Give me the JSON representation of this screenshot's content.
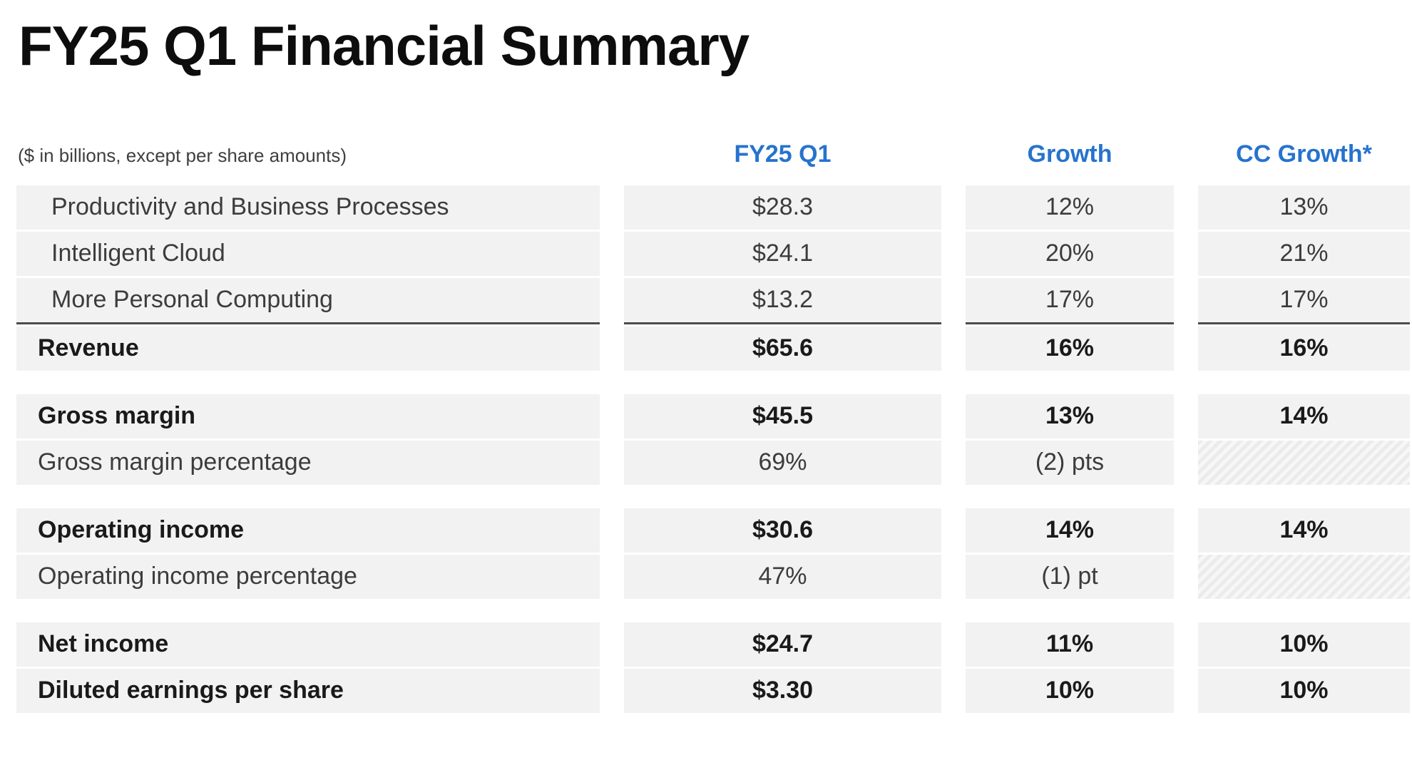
{
  "page": {
    "title": "FY25 Q1 Financial Summary",
    "caption": "($ in billions, except per share amounts)"
  },
  "table": {
    "columns": [
      "FY25 Q1",
      "Growth",
      "CC Growth*"
    ],
    "sections": [
      {
        "rows": [
          {
            "label": "Productivity and Business Processes",
            "values": [
              "$28.3",
              "12%",
              "13%"
            ],
            "bold": false,
            "indent": true
          },
          {
            "label": "Intelligent Cloud",
            "values": [
              "$24.1",
              "20%",
              "21%"
            ],
            "bold": false,
            "indent": true
          },
          {
            "label": "More Personal Computing",
            "values": [
              "$13.2",
              "17%",
              "17%"
            ],
            "bold": false,
            "indent": true,
            "rule_below": true
          },
          {
            "label": "Revenue",
            "values": [
              "$65.6",
              "16%",
              "16%"
            ],
            "bold": true,
            "indent": false
          }
        ]
      },
      {
        "rows": [
          {
            "label": "Gross margin",
            "values": [
              "$45.5",
              "13%",
              "14%"
            ],
            "bold": true,
            "indent": false
          },
          {
            "label": "Gross margin percentage",
            "values": [
              "69%",
              "(2) pts",
              null
            ],
            "bold": false,
            "indent": false
          }
        ]
      },
      {
        "rows": [
          {
            "label": "Operating income",
            "values": [
              "$30.6",
              "14%",
              "14%"
            ],
            "bold": true,
            "indent": false
          },
          {
            "label": "Operating income percentage",
            "values": [
              "47%",
              "(1) pt",
              null
            ],
            "bold": false,
            "indent": false
          }
        ]
      },
      {
        "rows": [
          {
            "label": "Net income",
            "values": [
              "$24.7",
              "11%",
              "10%"
            ],
            "bold": true,
            "indent": false
          },
          {
            "label": "Diluted earnings per share",
            "values": [
              "$3.30",
              "10%",
              "10%"
            ],
            "bold": true,
            "indent": false
          }
        ]
      }
    ]
  },
  "colors": {
    "accent_blue": "#2673CE",
    "row_bg": "#F2F2F2",
    "rule_dark": "#4B4B4B",
    "title_color": "#0D0D0D",
    "body_text": "#3C3C3C",
    "bold_text": "#1A1A1A",
    "caption_color": "#3F3F3F",
    "hatch_light": "#F7F7F7",
    "hatch_dark": "#EBEBEB"
  }
}
